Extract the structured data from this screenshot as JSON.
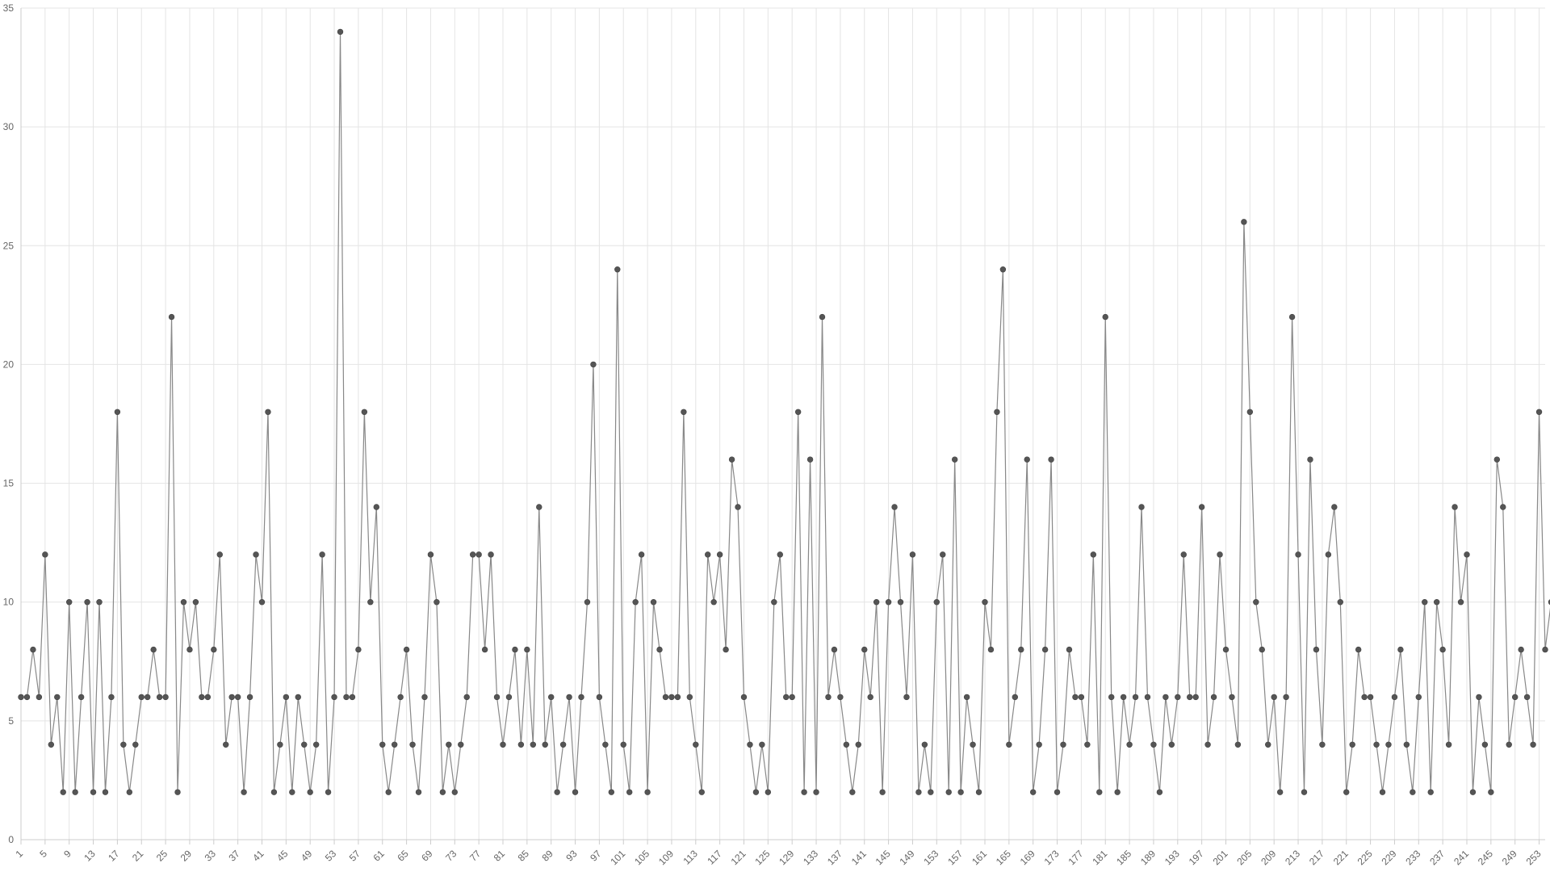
{
  "chart_data": {
    "type": "line",
    "title": "",
    "xlabel": "",
    "ylabel": "",
    "x_start": 1,
    "x_end": 254,
    "x_tick_labels": [
      "1",
      "5",
      "9",
      "13",
      "17",
      "21",
      "25",
      "29",
      "33",
      "37",
      "41",
      "45",
      "49",
      "53",
      "57",
      "61",
      "65",
      "69",
      "73",
      "77",
      "81",
      "85",
      "89",
      "93",
      "97",
      "101",
      "105",
      "109",
      "113",
      "117",
      "121",
      "125",
      "129",
      "133",
      "137",
      "141",
      "145",
      "149",
      "153",
      "157",
      "161",
      "165",
      "169",
      "173",
      "177",
      "181",
      "185",
      "189",
      "193",
      "197",
      "201",
      "205",
      "209",
      "213",
      "217",
      "221",
      "225",
      "229",
      "233",
      "237",
      "241",
      "245",
      "249",
      "253"
    ],
    "y_ticks": [
      "0",
      "5",
      "10",
      "15",
      "20",
      "25",
      "30",
      "35"
    ],
    "ylim": [
      0,
      35
    ],
    "grid": true,
    "series_color": "#888888",
    "point_color": "#555555",
    "series": [
      {
        "values": [
          6,
          6,
          8,
          6,
          12,
          4,
          6,
          2,
          10,
          2,
          6,
          10,
          2,
          10,
          2,
          6,
          18,
          4,
          2,
          4,
          6,
          6,
          8,
          6,
          6,
          22,
          2,
          10,
          8,
          10,
          6,
          6,
          8,
          12,
          4,
          6,
          6,
          2,
          6,
          12,
          10,
          18,
          2,
          4,
          6,
          2,
          6,
          4,
          2,
          4,
          12,
          2,
          6,
          34,
          6,
          6,
          8,
          18,
          10,
          14,
          4,
          2,
          4,
          6,
          8,
          4,
          2,
          6,
          12,
          10,
          2,
          4,
          2,
          4,
          6,
          12,
          12,
          8,
          12,
          6,
          4,
          6,
          8,
          4,
          8,
          4,
          14,
          4,
          6,
          2,
          4,
          6,
          2,
          6,
          10,
          20,
          6,
          4,
          2,
          24,
          4,
          2,
          10,
          12,
          2,
          10,
          8,
          6,
          6,
          6,
          18,
          6,
          4,
          2,
          12,
          10,
          12,
          8,
          16,
          14,
          6,
          4,
          2,
          4,
          2,
          10,
          12,
          6,
          6,
          18,
          2,
          16,
          2,
          22,
          6,
          8,
          6,
          4,
          2,
          4,
          8,
          6,
          10,
          2,
          10,
          14,
          10,
          6,
          12,
          2,
          4,
          2,
          10,
          12,
          2,
          16,
          2,
          6,
          4,
          2,
          10,
          8,
          18,
          24,
          4,
          6,
          8,
          16,
          2,
          4,
          8,
          16,
          2,
          4,
          8,
          6,
          6,
          4,
          12,
          2,
          22,
          6,
          2,
          6,
          4,
          6,
          14,
          6,
          4,
          2,
          6,
          4,
          6,
          12,
          6,
          6,
          14,
          4,
          6,
          12,
          8,
          6,
          4,
          26,
          18,
          10,
          8,
          4,
          6,
          2,
          6,
          22,
          12,
          2,
          16,
          8,
          4,
          12,
          14,
          10,
          2,
          4,
          8,
          6,
          6,
          4,
          2,
          4,
          6,
          8,
          4,
          2,
          6,
          10,
          2,
          10,
          8,
          4,
          14,
          10,
          12,
          2,
          6,
          4,
          2,
          16,
          14,
          4,
          6,
          8,
          6,
          4,
          18,
          8,
          10
        ]
      }
    ]
  }
}
